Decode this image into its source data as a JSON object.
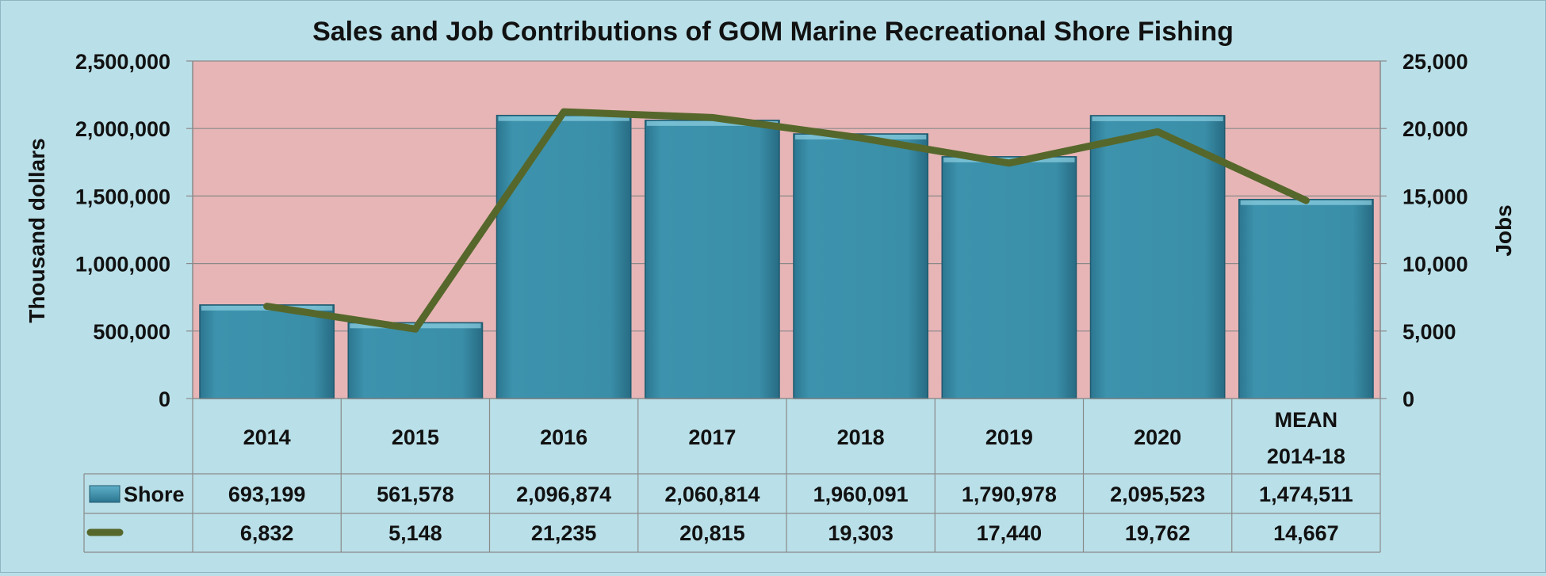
{
  "chart_data": {
    "type": "bar",
    "title": "Sales and Job Contributions of GOM Marine Recreational Shore Fishing",
    "ylabel": "Thousand dollars",
    "y2label": "Jobs",
    "ylim": [
      0,
      2500000
    ],
    "y2lim": [
      0,
      25000
    ],
    "yticks": [
      "0",
      "500,000",
      "1,000,000",
      "1,500,000",
      "2,000,000",
      "2,500,000"
    ],
    "y2ticks": [
      "0",
      "5,000",
      "10,000",
      "15,000",
      "20,000",
      "25,000"
    ],
    "categories": [
      {
        "line1": "2014",
        "line2": ""
      },
      {
        "line1": "2015",
        "line2": ""
      },
      {
        "line1": "2016",
        "line2": ""
      },
      {
        "line1": "2017",
        "line2": ""
      },
      {
        "line1": "2018",
        "line2": ""
      },
      {
        "line1": "2019",
        "line2": ""
      },
      {
        "line1": "2020",
        "line2": ""
      },
      {
        "line1": "MEAN",
        "line2": "2014-18"
      }
    ],
    "series": [
      {
        "name": "Shore",
        "kind": "bar",
        "axis": "left",
        "color": "#3a8ea8",
        "values": [
          693199,
          561578,
          2096874,
          2060814,
          1960091,
          1790978,
          2095523,
          1474511
        ],
        "labels": [
          "693,199",
          "561,578",
          "2,096,874",
          "2,060,814",
          "1,960,091",
          "1,790,978",
          "2,095,523",
          "1,474,511"
        ]
      },
      {
        "name": "",
        "kind": "line",
        "axis": "right",
        "color": "#56672b",
        "values": [
          6832,
          5148,
          21235,
          20815,
          19303,
          17440,
          19762,
          14667
        ],
        "labels": [
          "6,832",
          "5,148",
          "21,235",
          "20,815",
          "19,303",
          "17,440",
          "19,762",
          "14,667"
        ]
      }
    ],
    "plot_background": "#e7b5b6",
    "legend": "data-table",
    "grid": true
  }
}
